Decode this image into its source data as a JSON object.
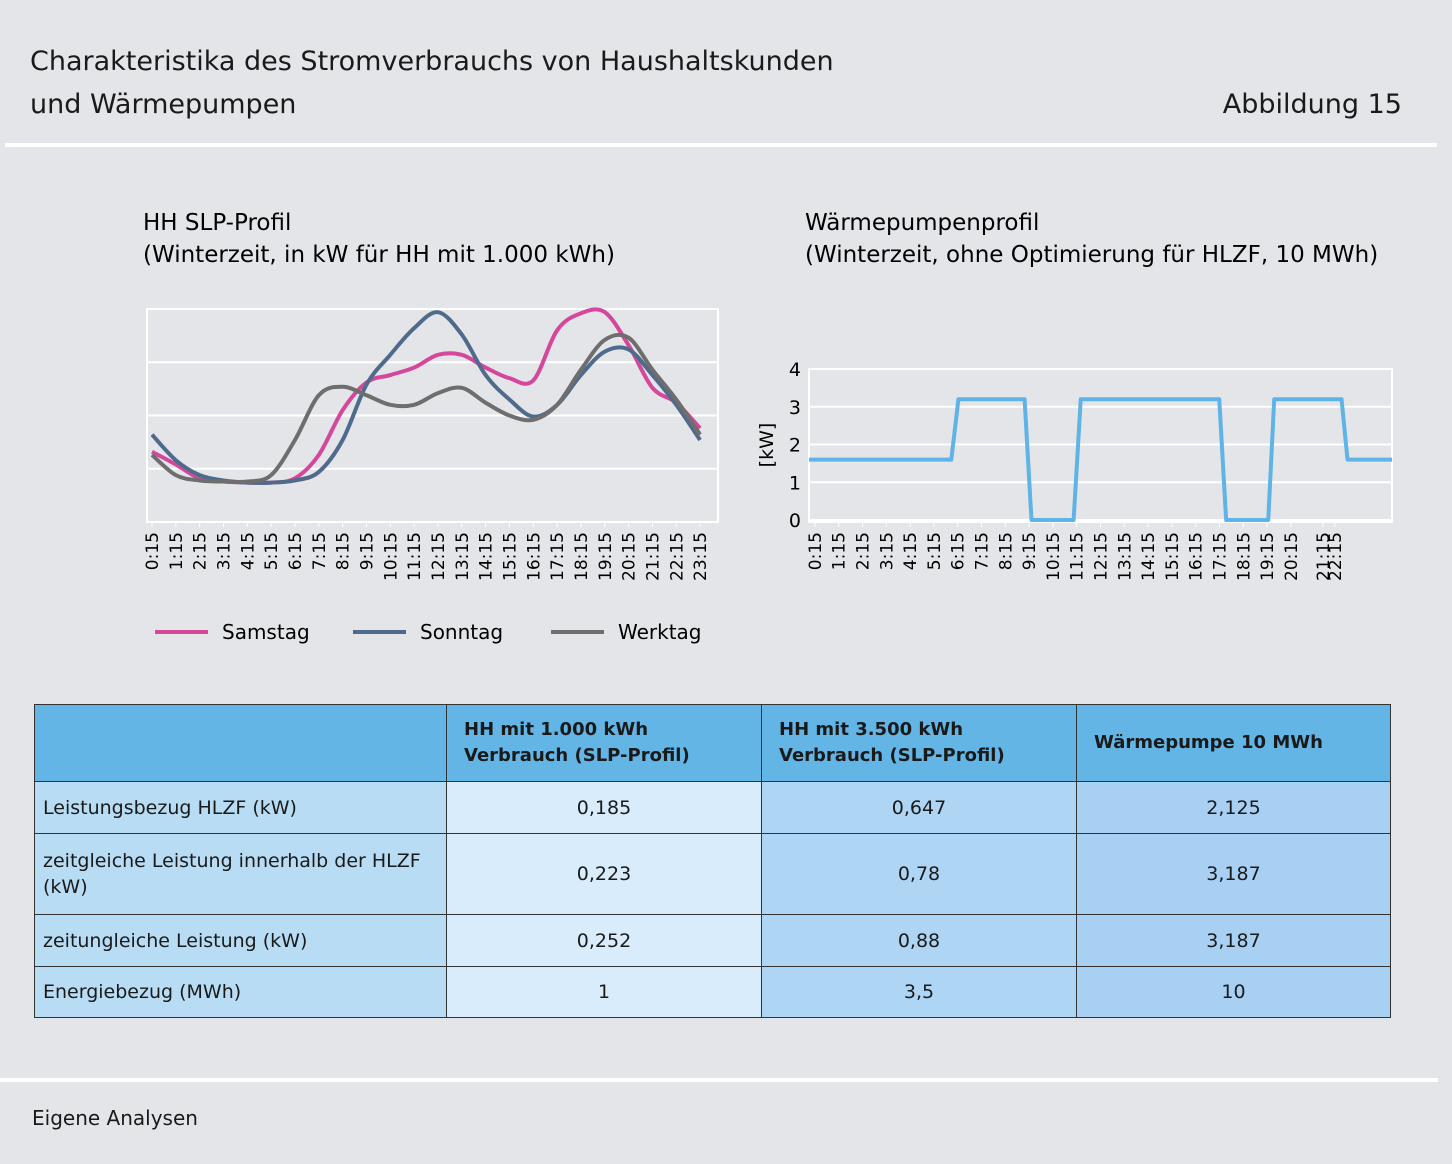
{
  "header": {
    "title": "Charakteristika des Stromverbrauchs von Haushaltskunden und Wärmepumpen",
    "figure": "Abbildung 15"
  },
  "chart_data": [
    {
      "type": "line",
      "smooth": true,
      "title": "HH SLP-Profil",
      "subtitle": "(Winterzeit, in kW für HH mit 1.000 kWh)",
      "categories": [
        "0:15",
        "1:15",
        "2:15",
        "3:15",
        "4:15",
        "5:15",
        "6:15",
        "7:15",
        "8:15",
        "9:15",
        "10:15",
        "11:15",
        "12:15",
        "13:15",
        "14:15",
        "15:15",
        "16:15",
        "17:15",
        "18:15",
        "19:15",
        "20:15",
        "21:15",
        "22:15",
        "23:15"
      ],
      "ylim": [
        0,
        0.2
      ],
      "legend": "bottom",
      "series": [
        {
          "name": "Samstag",
          "color": "#d4479b",
          "values": [
            0.066,
            0.054,
            0.041,
            0.038,
            0.037,
            0.037,
            0.041,
            0.063,
            0.105,
            0.131,
            0.138,
            0.145,
            0.157,
            0.157,
            0.145,
            0.135,
            0.133,
            0.18,
            0.196,
            0.197,
            0.166,
            0.126,
            0.112,
            0.088
          ]
        },
        {
          "name": "Sonntag",
          "color": "#4f6b8c",
          "values": [
            0.082,
            0.058,
            0.044,
            0.039,
            0.037,
            0.037,
            0.039,
            0.047,
            0.077,
            0.129,
            0.157,
            0.182,
            0.197,
            0.176,
            0.138,
            0.115,
            0.099,
            0.11,
            0.138,
            0.16,
            0.162,
            0.138,
            0.11,
            0.077
          ]
        },
        {
          "name": "Werktag",
          "color": "#6e6e6e",
          "values": [
            0.063,
            0.044,
            0.039,
            0.038,
            0.038,
            0.044,
            0.077,
            0.119,
            0.127,
            0.119,
            0.11,
            0.11,
            0.121,
            0.126,
            0.112,
            0.1,
            0.096,
            0.11,
            0.143,
            0.171,
            0.173,
            0.143,
            0.115,
            0.082
          ]
        }
      ]
    },
    {
      "type": "line",
      "title": "Wärmepumpenprofil",
      "subtitle": "(Winterzeit, ohne Optimierung für HLZF, 10 MWh)",
      "ylabel": "[kW]",
      "xlim": [
        0,
        24.5
      ],
      "xticks": [
        {
          "value": 0.25,
          "label": "0:15"
        },
        {
          "value": 1.25,
          "label": "1:15"
        },
        {
          "value": 2.25,
          "label": "2:15"
        },
        {
          "value": 3.25,
          "label": "3:15"
        },
        {
          "value": 4.25,
          "label": "4:15"
        },
        {
          "value": 5.25,
          "label": "5:15"
        },
        {
          "value": 6.25,
          "label": "6:15"
        },
        {
          "value": 7.25,
          "label": "7:15"
        },
        {
          "value": 8.25,
          "label": "8:15"
        },
        {
          "value": 9.25,
          "label": "9:15"
        },
        {
          "value": 10.25,
          "label": "10:15"
        },
        {
          "value": 11.25,
          "label": "11:15"
        },
        {
          "value": 12.25,
          "label": "12:15"
        },
        {
          "value": 13.25,
          "label": "13:15"
        },
        {
          "value": 14.25,
          "label": "14:15"
        },
        {
          "value": 15.25,
          "label": "15:15"
        },
        {
          "value": 16.25,
          "label": "16:15"
        },
        {
          "value": 17.25,
          "label": "17:15"
        },
        {
          "value": 18.25,
          "label": "18:15"
        },
        {
          "value": 19.25,
          "label": "19:15"
        },
        {
          "value": 20.25,
          "label": "20:15"
        },
        {
          "value": 21.6,
          "label": "21:15"
        },
        {
          "value": 22.1,
          "label": "22:15"
        }
      ],
      "ylim": [
        0,
        4
      ],
      "yticks": [
        0,
        1,
        2,
        3,
        4
      ],
      "grid": true,
      "series": [
        {
          "color": "#5fb3e6",
          "x": [
            0,
            5.98,
            6.28,
            9.06,
            9.35,
            11.12,
            11.42,
            17.24,
            17.53,
            19.3,
            19.55,
            22.38,
            22.63,
            24.5
          ],
          "values": [
            1.6,
            1.6,
            3.2,
            3.2,
            0,
            0,
            3.2,
            3.2,
            0,
            0,
            3.2,
            3.2,
            1.6,
            1.6
          ]
        }
      ]
    }
  ],
  "table": {
    "header": [
      "HH mit 1.000 kWh Verbrauch (SLP-Profil)",
      "HH mit 3.500 kWh Verbrauch (SLP-Profil)",
      "Wärmepumpe 10 MWh"
    ],
    "rows": [
      [
        "Leistungsbezug HLZF (kW)",
        "0,185",
        "0,647",
        "2,125"
      ],
      [
        "zeitgleiche Leistung innerhalb der HLZF (kW)",
        "0,223",
        "0,78",
        "3,187"
      ],
      [
        "zeitungleiche Leistung (kW)",
        "0,252",
        "0,88",
        "3,187"
      ],
      [
        "Energiebezug (MWh)",
        "1",
        "3,5",
        "10"
      ]
    ]
  },
  "footer": {
    "source": "Eigene Analysen"
  }
}
